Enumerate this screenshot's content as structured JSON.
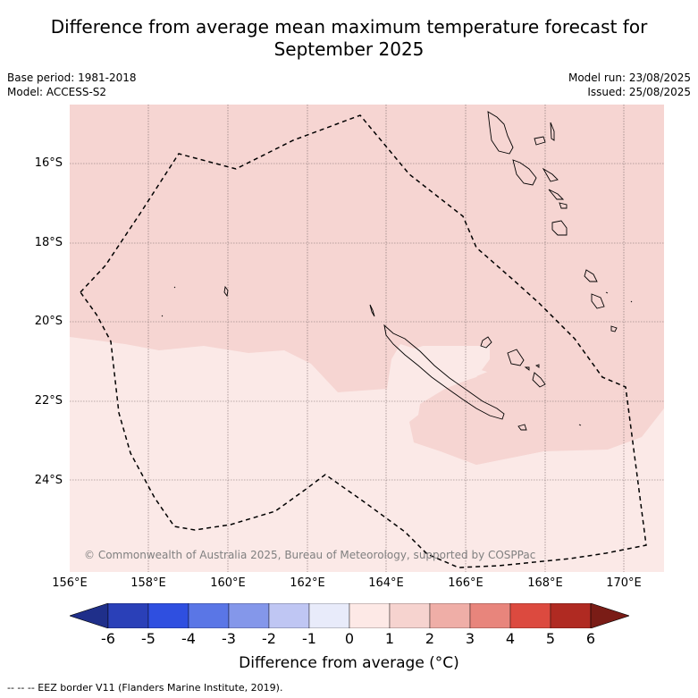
{
  "header": {
    "title_line1": "Difference from average mean maximum temperature forecast for",
    "title_line2": "September 2025",
    "base_period": "Base period: 1981-2018",
    "model": "Model: ACCESS-S2",
    "model_run": "Model run: 23/08/2025",
    "issued": "Issued: 25/08/2025"
  },
  "map": {
    "lat_labels": [
      "16°S",
      "18°S",
      "20°S",
      "22°S",
      "24°S"
    ],
    "lon_labels": [
      "156°E",
      "158°E",
      "160°E",
      "162°E",
      "164°E",
      "166°E",
      "168°E",
      "170°E"
    ],
    "copyright": "© Commonwealth of Australia 2025, Bureau of Meteorology, supported by COSPPac",
    "colors": {
      "anomaly_0_1": "#fbe9e7",
      "anomaly_1_2": "#f6d5d2",
      "grid": "#7a6a6a"
    }
  },
  "colorbar": {
    "ticks": [
      "-6",
      "-5",
      "-4",
      "-3",
      "-2",
      "-1",
      "0",
      "1",
      "2",
      "3",
      "4",
      "5",
      "6"
    ],
    "colors": [
      "#1f2f8a",
      "#2a40b8",
      "#2f4fe0",
      "#5a76e6",
      "#8497ea",
      "#bfc6f3",
      "#e8ebfa",
      "#fde9e6",
      "#f6d3cf",
      "#efaea7",
      "#e8857c",
      "#dc4a3f",
      "#b02a22",
      "#7a1c16"
    ],
    "title": "Difference from average (°C)"
  },
  "footnote": "-- -- -- EEZ border V11 (Flanders Marine Institute, 2019)."
}
